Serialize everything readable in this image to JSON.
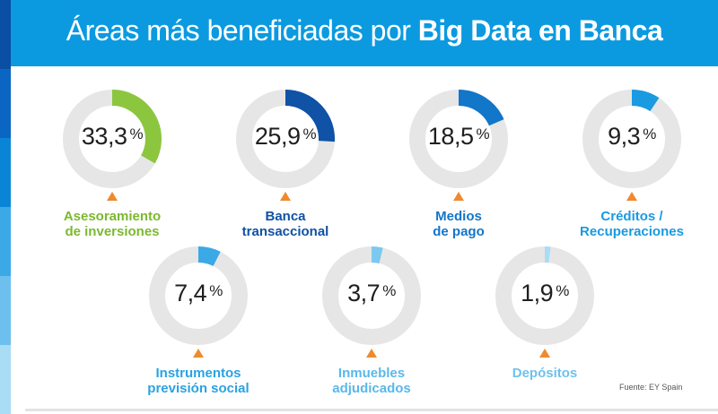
{
  "header": {
    "title_light": "Áreas más beneficiadas por",
    "title_bold": "Big Data en Banca"
  },
  "chart_data": {
    "type": "donut",
    "title": "Áreas más beneficiadas por Big Data en Banca",
    "unit": "%",
    "track_color": "#e6e6e6",
    "marker_color": "#ef8a2e",
    "items": [
      {
        "value_label": "33,3",
        "value": 33.3,
        "label": [
          "Asesoramiento",
          "de inversiones"
        ],
        "color": "#8cc63f",
        "label_color": "#7cb82f"
      },
      {
        "value_label": "25,9",
        "value": 25.9,
        "label": [
          "Banca",
          "transaccional"
        ],
        "color": "#0f52a6",
        "label_color": "#0f52a6"
      },
      {
        "value_label": "18,5",
        "value": 18.5,
        "label": [
          "Medios",
          "de pago"
        ],
        "color": "#1276c9",
        "label_color": "#1276c9"
      },
      {
        "value_label": "9,3",
        "value": 9.3,
        "label": [
          "Créditos /",
          "Recuperaciones"
        ],
        "color": "#1a9ae0",
        "label_color": "#1a9ae0"
      },
      {
        "value_label": "7,4",
        "value": 7.4,
        "label": [
          "Instrumentos",
          "previsión social"
        ],
        "color": "#3aa9e6",
        "label_color": "#2aa2e2"
      },
      {
        "value_label": "3,7",
        "value": 3.7,
        "label": [
          "Inmuebles",
          "adjudicados"
        ],
        "color": "#7cc8ef",
        "label_color": "#5ab8ea"
      },
      {
        "value_label": "1,9",
        "value": 1.9,
        "label": [
          "Depósitos"
        ],
        "color": "#a9dcf5",
        "label_color": "#6fc1ec"
      }
    ]
  },
  "source": "Fuente: EY Spain",
  "stripe_colors": [
    "#0a4fa3",
    "#0a66c2",
    "#0a85d6",
    "#3aa9e6",
    "#6dc0ee",
    "#a9dcf5"
  ]
}
